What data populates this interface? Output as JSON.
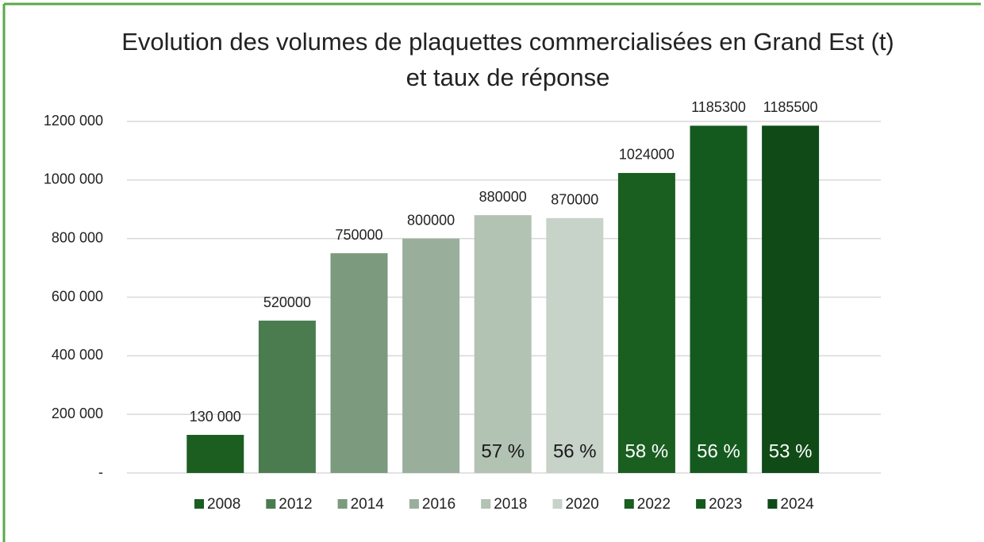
{
  "chart_data": {
    "type": "bar",
    "title": "Evolution des volumes de plaquettes commercialisées en Grand Est (t) et taux de réponse",
    "series": [
      {
        "name": "2008",
        "color": "#1b5e20",
        "values": [
          130000
        ],
        "value_labels": [
          "130 000"
        ]
      },
      {
        "name": "2012",
        "color": "#4a7c50",
        "values": [
          520000
        ]
      },
      {
        "name": "2014",
        "color": "#7b9a7e",
        "values": [
          750000
        ]
      },
      {
        "name": "2016",
        "color": "#9aae9c",
        "values": [
          800000
        ]
      },
      {
        "name": "2018",
        "color": "#b2c2b3",
        "values": [
          880000
        ],
        "annotation": "57 %",
        "annotation_color": "#1a1a1a"
      },
      {
        "name": "2020",
        "color": "#c7d2c8",
        "values": [
          870000
        ],
        "annotation": "56 %",
        "annotation_color": "#1a1a1a"
      },
      {
        "name": "2022",
        "color": "#1a5e20",
        "values": [
          1024000
        ],
        "annotation": "58 %",
        "annotation_color": "#ffffff"
      },
      {
        "name": "2023",
        "color": "#145a1e",
        "values": [
          1185300
        ],
        "annotation": "56 %",
        "annotation_color": "#ffffff"
      },
      {
        "name": "2024",
        "color": "#0f4a17",
        "values": [
          1185500
        ],
        "annotation": "53 %",
        "annotation_color": "#ffffff"
      }
    ],
    "ylim": [
      0,
      1200000
    ],
    "yticks": [
      {
        "value": 0,
        "label": "-"
      },
      {
        "value": 200000,
        "label": "200 000"
      },
      {
        "value": 400000,
        "label": "400 000"
      },
      {
        "value": 600000,
        "label": "600 000"
      },
      {
        "value": 800000,
        "label": "800 000"
      },
      {
        "value": 1000000,
        "label": "1000 000"
      },
      {
        "value": 1200000,
        "label": "1200 000"
      }
    ],
    "grid": true,
    "legend": "bottom"
  }
}
